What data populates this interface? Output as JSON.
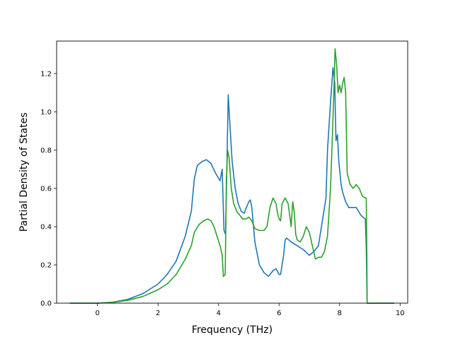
{
  "chart_data": {
    "type": "line",
    "title": "",
    "xlabel": "Frequency (THz)",
    "ylabel": "Partial Density of States",
    "xlim": [
      -1.35,
      10.25
    ],
    "ylim": [
      0.0,
      1.37
    ],
    "xticks": [
      0,
      2,
      4,
      6,
      8,
      10
    ],
    "yticks": [
      0.0,
      0.2,
      0.4,
      0.6,
      0.8,
      1.0,
      1.2
    ],
    "xtick_labels": [
      "0",
      "2",
      "4",
      "6",
      "8",
      "10"
    ],
    "ytick_labels": [
      "0.0",
      "0.2",
      "0.4",
      "0.6",
      "0.8",
      "1.0",
      "1.2"
    ],
    "grid": false,
    "legend": "none",
    "series": [
      {
        "color": "#1f77b4",
        "x": [
          -0.91,
          0.0,
          0.5,
          1.0,
          1.5,
          2.0,
          2.3,
          2.6,
          2.9,
          3.1,
          3.2,
          3.3,
          3.45,
          3.6,
          3.75,
          3.9,
          4.05,
          4.12,
          4.18,
          4.23,
          4.28,
          4.32,
          4.38,
          4.45,
          4.55,
          4.65,
          4.75,
          4.85,
          4.92,
          5.0,
          5.05,
          5.1,
          5.2,
          5.35,
          5.5,
          5.65,
          5.8,
          5.9,
          6.0,
          6.05,
          6.1,
          6.15,
          6.2,
          6.25,
          6.4,
          6.6,
          6.8,
          7.0,
          7.15,
          7.3,
          7.45,
          7.55,
          7.6,
          7.7,
          7.78,
          7.84,
          7.88,
          7.93,
          7.97,
          8.0,
          8.05,
          8.1,
          8.2,
          8.3,
          8.4,
          8.55,
          8.7,
          8.85,
          8.88,
          8.9,
          8.91,
          9.8
        ],
        "y": [
          0.0,
          0.0,
          0.005,
          0.02,
          0.05,
          0.1,
          0.15,
          0.22,
          0.35,
          0.48,
          0.65,
          0.72,
          0.74,
          0.75,
          0.73,
          0.68,
          0.64,
          0.7,
          0.38,
          0.36,
          0.75,
          1.09,
          0.92,
          0.74,
          0.6,
          0.52,
          0.48,
          0.47,
          0.5,
          0.53,
          0.54,
          0.5,
          0.32,
          0.2,
          0.16,
          0.14,
          0.17,
          0.18,
          0.15,
          0.15,
          0.2,
          0.25,
          0.33,
          0.34,
          0.32,
          0.3,
          0.28,
          0.25,
          0.27,
          0.3,
          0.45,
          0.55,
          0.8,
          1.05,
          1.23,
          1.15,
          0.85,
          0.88,
          0.75,
          0.7,
          0.62,
          0.58,
          0.53,
          0.5,
          0.5,
          0.5,
          0.46,
          0.44,
          0.3,
          0.1,
          0.0,
          0.0
        ]
      },
      {
        "color": "#2ca02c",
        "x": [
          -0.91,
          0.0,
          0.5,
          1.0,
          1.5,
          2.0,
          2.3,
          2.6,
          2.9,
          3.1,
          3.2,
          3.35,
          3.5,
          3.65,
          3.75,
          3.85,
          3.95,
          4.05,
          4.12,
          4.16,
          4.22,
          4.26,
          4.3,
          4.35,
          4.42,
          4.5,
          4.6,
          4.7,
          4.8,
          4.9,
          5.0,
          5.1,
          5.2,
          5.35,
          5.5,
          5.6,
          5.7,
          5.8,
          5.9,
          5.95,
          6.0,
          6.05,
          6.1,
          6.2,
          6.3,
          6.4,
          6.45,
          6.5,
          6.55,
          6.6,
          6.7,
          6.8,
          6.9,
          7.0,
          7.1,
          7.2,
          7.3,
          7.4,
          7.5,
          7.6,
          7.7,
          7.8,
          7.85,
          7.9,
          7.95,
          8.0,
          8.05,
          8.1,
          8.15,
          8.2,
          8.25,
          8.35,
          8.45,
          8.55,
          8.65,
          8.75,
          8.85,
          8.88,
          8.9,
          8.91,
          9.8
        ],
        "y": [
          0.0,
          0.0,
          0.004,
          0.015,
          0.035,
          0.07,
          0.1,
          0.15,
          0.23,
          0.3,
          0.37,
          0.41,
          0.43,
          0.44,
          0.43,
          0.4,
          0.35,
          0.3,
          0.25,
          0.14,
          0.15,
          0.65,
          0.8,
          0.76,
          0.6,
          0.52,
          0.48,
          0.46,
          0.44,
          0.44,
          0.45,
          0.43,
          0.39,
          0.38,
          0.38,
          0.4,
          0.5,
          0.55,
          0.52,
          0.47,
          0.44,
          0.43,
          0.52,
          0.55,
          0.52,
          0.4,
          0.53,
          0.48,
          0.36,
          0.33,
          0.32,
          0.35,
          0.4,
          0.37,
          0.3,
          0.23,
          0.24,
          0.24,
          0.27,
          0.35,
          0.6,
          1.05,
          1.33,
          1.25,
          1.1,
          1.14,
          1.1,
          1.15,
          1.18,
          1.1,
          0.68,
          0.62,
          0.6,
          0.62,
          0.6,
          0.56,
          0.55,
          0.55,
          0.25,
          0.0,
          0.0
        ]
      }
    ]
  }
}
